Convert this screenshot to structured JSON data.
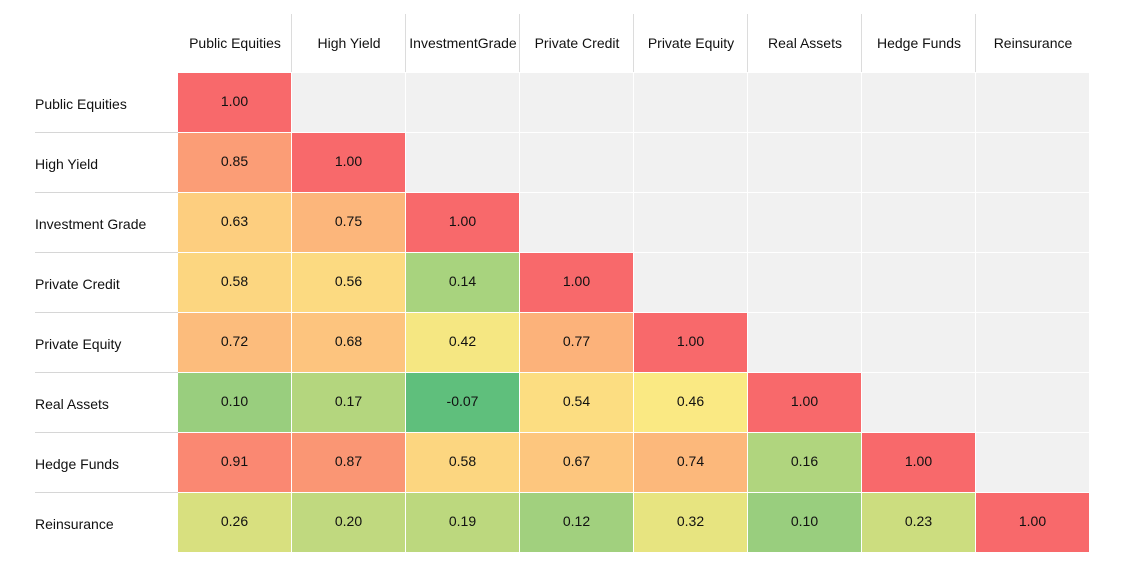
{
  "chart_data": {
    "type": "heatmap",
    "rows": [
      "Public Equities",
      "High Yield",
      "Investment Grade",
      "Private Credit",
      "Private Equity",
      "Real Assets",
      "Hedge Funds",
      "Reinsurance"
    ],
    "columns": [
      "Public Equities",
      "High Yield",
      "Investment\nGrade",
      "Private Credit",
      "Private Equity",
      "Real Assets",
      "Hedge Funds",
      "Reinsurance"
    ],
    "values": [
      [
        1.0,
        null,
        null,
        null,
        null,
        null,
        null,
        null
      ],
      [
        0.85,
        1.0,
        null,
        null,
        null,
        null,
        null,
        null
      ],
      [
        0.63,
        0.75,
        1.0,
        null,
        null,
        null,
        null,
        null
      ],
      [
        0.58,
        0.56,
        0.14,
        1.0,
        null,
        null,
        null,
        null
      ],
      [
        0.72,
        0.68,
        0.42,
        0.77,
        1.0,
        null,
        null,
        null
      ],
      [
        0.1,
        0.17,
        -0.07,
        0.54,
        0.46,
        1.0,
        null,
        null
      ],
      [
        0.91,
        0.87,
        0.58,
        0.67,
        0.74,
        0.16,
        1.0,
        null
      ],
      [
        0.26,
        0.2,
        0.19,
        0.12,
        0.32,
        0.1,
        0.23,
        1.0
      ]
    ],
    "value_labels": [
      [
        "1.00",
        "",
        "",
        "",
        "",
        "",
        "",
        ""
      ],
      [
        "0.85",
        "1.00",
        "",
        "",
        "",
        "",
        "",
        ""
      ],
      [
        "0.63",
        "0.75",
        "1.00",
        "",
        "",
        "",
        "",
        ""
      ],
      [
        "0.58",
        "0.56",
        "0.14",
        "1.00",
        "",
        "",
        "",
        ""
      ],
      [
        "0.72",
        "0.68",
        "0.42",
        "0.77",
        "1.00",
        "",
        "",
        ""
      ],
      [
        "0.10",
        "0.17",
        "-0.07",
        "0.54",
        "0.46",
        "1.00",
        "",
        ""
      ],
      [
        "0.91",
        "0.87",
        "0.58",
        "0.67",
        "0.74",
        "0.16",
        "1.00",
        ""
      ],
      [
        "0.26",
        "0.20",
        "0.19",
        "0.12",
        "0.32",
        "0.10",
        "0.23",
        "1.00"
      ]
    ],
    "color_scale": {
      "min": -0.07,
      "max": 1.0,
      "stops": [
        "#5fbf7c",
        "#9ccf7e",
        "#e2e37f",
        "#fbe983",
        "#fdcc7f",
        "#fba778",
        "#f8696b"
      ]
    },
    "empty_cell_color": "#f1f1f1",
    "grid": true,
    "legend": "none"
  }
}
